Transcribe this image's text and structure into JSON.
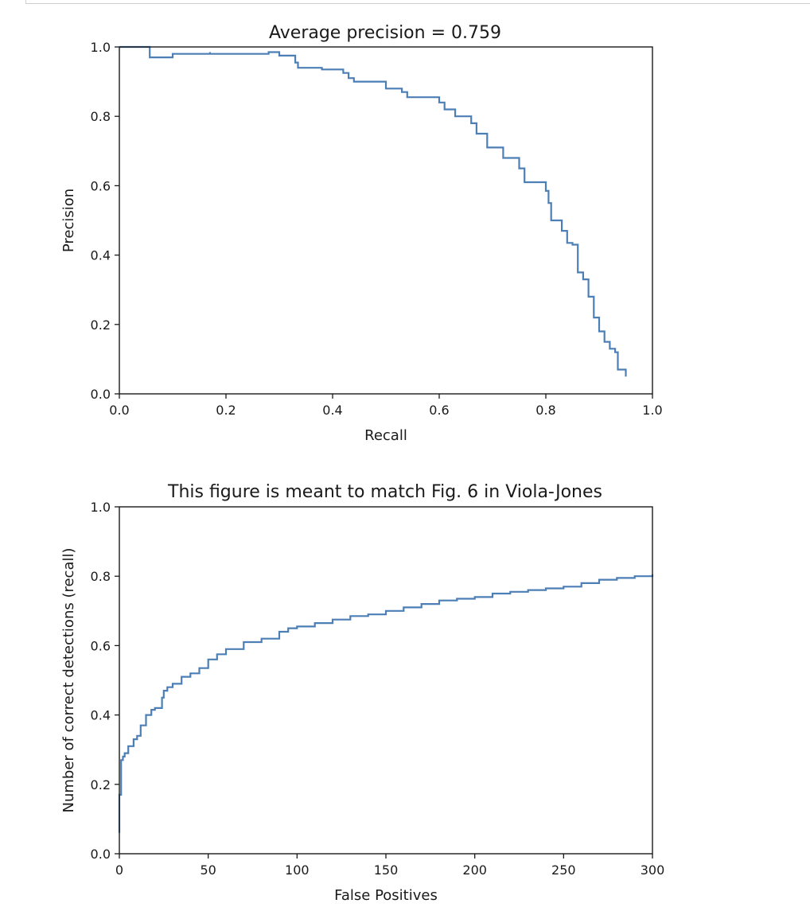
{
  "chart_data": [
    {
      "type": "line",
      "title": "Average precision = 0.759",
      "xlabel": "Recall",
      "ylabel": "Precision",
      "xlim": [
        0,
        1
      ],
      "ylim": [
        0,
        1
      ],
      "xticks": [
        "0.0",
        "0.2",
        "0.4",
        "0.6",
        "0.8",
        "1.0"
      ],
      "yticks": [
        "0.0",
        "0.2",
        "0.4",
        "0.6",
        "0.8",
        "1.0"
      ],
      "grid": false,
      "color": "#4c7fb5",
      "step": true,
      "x": [
        0.0,
        0.057,
        0.057,
        0.1,
        0.17,
        0.17,
        0.28,
        0.3,
        0.33,
        0.335,
        0.38,
        0.42,
        0.43,
        0.44,
        0.49,
        0.5,
        0.53,
        0.54,
        0.6,
        0.61,
        0.63,
        0.66,
        0.67,
        0.69,
        0.72,
        0.75,
        0.76,
        0.8,
        0.805,
        0.81,
        0.83,
        0.84,
        0.85,
        0.86,
        0.87,
        0.88,
        0.89,
        0.9,
        0.91,
        0.92,
        0.93,
        0.935,
        0.95
      ],
      "y": [
        1.0,
        1.0,
        0.97,
        0.98,
        0.985,
        0.98,
        0.985,
        0.975,
        0.955,
        0.94,
        0.935,
        0.925,
        0.91,
        0.9,
        0.9,
        0.88,
        0.87,
        0.855,
        0.84,
        0.82,
        0.8,
        0.78,
        0.75,
        0.71,
        0.68,
        0.65,
        0.61,
        0.585,
        0.55,
        0.5,
        0.47,
        0.435,
        0.43,
        0.35,
        0.33,
        0.28,
        0.22,
        0.18,
        0.15,
        0.13,
        0.12,
        0.07,
        0.05
      ]
    },
    {
      "type": "line",
      "title": "This figure is meant to match Fig. 6 in Viola-Jones",
      "xlabel": "False Positives",
      "ylabel": "Number of correct detections (recall)",
      "xlim": [
        0,
        300
      ],
      "ylim": [
        0,
        1
      ],
      "xticks": [
        "0",
        "50",
        "100",
        "150",
        "200",
        "250",
        "300"
      ],
      "yticks": [
        "0.0",
        "0.2",
        "0.4",
        "0.6",
        "0.8",
        "1.0"
      ],
      "grid": false,
      "color": "#4c7fb5",
      "step": true,
      "x": [
        0,
        0,
        1,
        1,
        2,
        3,
        5,
        8,
        10,
        12,
        15,
        18,
        20,
        24,
        25,
        27,
        30,
        35,
        40,
        45,
        50,
        55,
        60,
        70,
        80,
        90,
        95,
        100,
        110,
        120,
        130,
        140,
        150,
        160,
        170,
        180,
        190,
        200,
        210,
        220,
        230,
        240,
        250,
        260,
        270,
        280,
        290,
        300
      ],
      "y": [
        0.06,
        0.17,
        0.24,
        0.27,
        0.28,
        0.29,
        0.31,
        0.33,
        0.34,
        0.37,
        0.4,
        0.415,
        0.42,
        0.45,
        0.47,
        0.48,
        0.49,
        0.51,
        0.52,
        0.535,
        0.56,
        0.575,
        0.59,
        0.61,
        0.62,
        0.64,
        0.65,
        0.655,
        0.665,
        0.675,
        0.685,
        0.69,
        0.7,
        0.71,
        0.72,
        0.73,
        0.735,
        0.74,
        0.75,
        0.755,
        0.76,
        0.765,
        0.77,
        0.78,
        0.79,
        0.795,
        0.8,
        0.805
      ]
    }
  ]
}
